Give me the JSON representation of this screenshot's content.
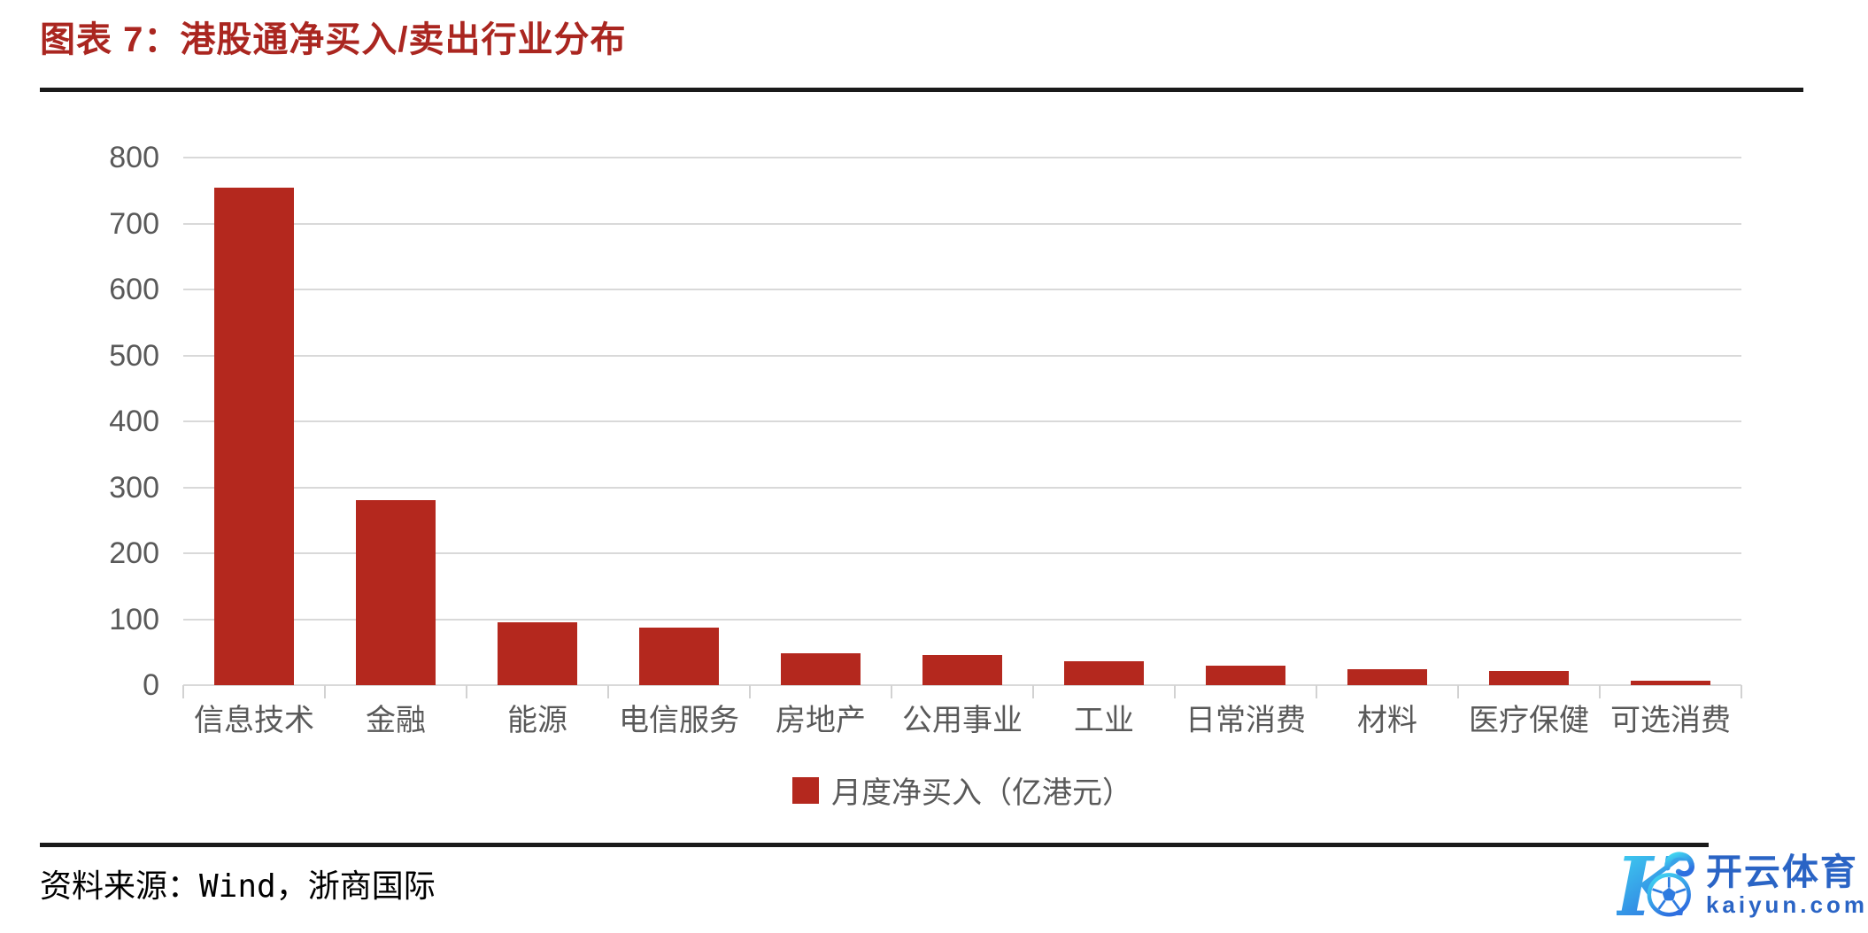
{
  "header": {
    "title": "图表 7：港股通净买入/卖出行业分布"
  },
  "chart_data": {
    "type": "bar",
    "title": "图表 7：港股通净买入/卖出行业分布",
    "categories": [
      "信息技术",
      "金融",
      "能源",
      "电信服务",
      "房地产",
      "公用事业",
      "工业",
      "日常消费",
      "材料",
      "医疗保健",
      "可选消费"
    ],
    "values": [
      755,
      280,
      95,
      87,
      48,
      45,
      36,
      30,
      24,
      22,
      7
    ],
    "legend": "月度净买入（亿港元）",
    "legend_position": "bottom",
    "xlabel": "",
    "ylabel": "",
    "ylim": [
      0,
      800
    ],
    "yticks": [
      0,
      100,
      200,
      300,
      400,
      500,
      600,
      700,
      800
    ],
    "grid": true,
    "bar_color": "#B4281E"
  },
  "footer": {
    "source": "资料来源：Wind，浙商国际"
  },
  "logo": {
    "name": "开云体育",
    "domain": "kaiyun.com",
    "emblem": "k-football-icon"
  },
  "colors": {
    "title_red": "#AA2620",
    "bar_red": "#B4281E",
    "axis_text": "#595959",
    "gridline": "#D9D9D9",
    "divider_black": "#1A1A1A",
    "logo_blue": "#2A64C5",
    "logo_cyan": "#41DCF2"
  }
}
